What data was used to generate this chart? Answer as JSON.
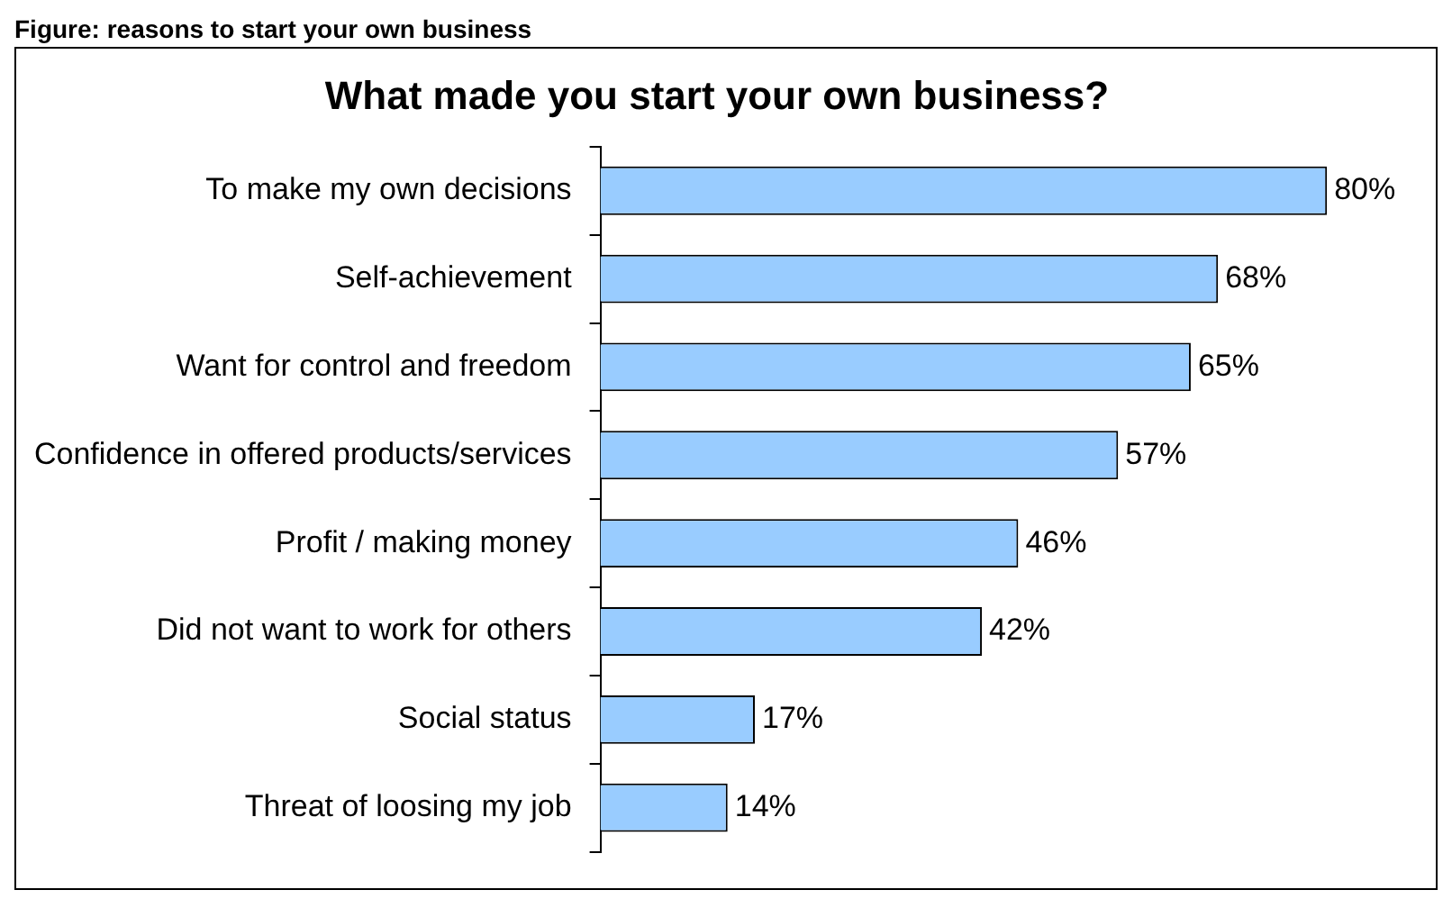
{
  "chart_data": {
    "type": "bar",
    "orientation": "horizontal",
    "title": "What made you start your own business?",
    "annotations": [
      "Figure: reasons to start your own business"
    ],
    "categories": [
      "To make my own decisions",
      "Self-achievement",
      "Want for control and freedom",
      "Confidence in offered products/services",
      "Profit / making money",
      "Did not want to work for others",
      "Social status",
      "Threat of loosing my job"
    ],
    "values": [
      80,
      68,
      65,
      57,
      46,
      42,
      17,
      14
    ],
    "value_labels": [
      "80%",
      "68%",
      "65%",
      "57%",
      "46%",
      "42%",
      "17%",
      "14%"
    ],
    "color": "#99ccff",
    "grid": false,
    "legend": false
  }
}
